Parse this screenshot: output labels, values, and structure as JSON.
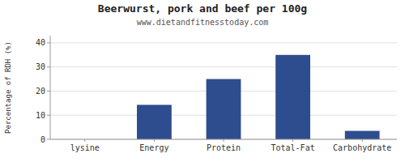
{
  "chart_data": {
    "type": "bar",
    "title": "Beerwurst, pork and beef per 100g",
    "subtitle": "www.dietandfitnesstoday.com",
    "categories": [
      "lysine",
      "Energy",
      "Protein",
      "Total-Fat",
      "Carbohydrate"
    ],
    "values": [
      0.0,
      14.3,
      25.0,
      35.0,
      3.5
    ],
    "color": "#2e4d8e",
    "ylabel": "Percentage of RDH (%)",
    "ylim": [
      0,
      43
    ],
    "yticks": [
      0,
      10,
      20,
      30,
      40
    ],
    "grid": true
  }
}
